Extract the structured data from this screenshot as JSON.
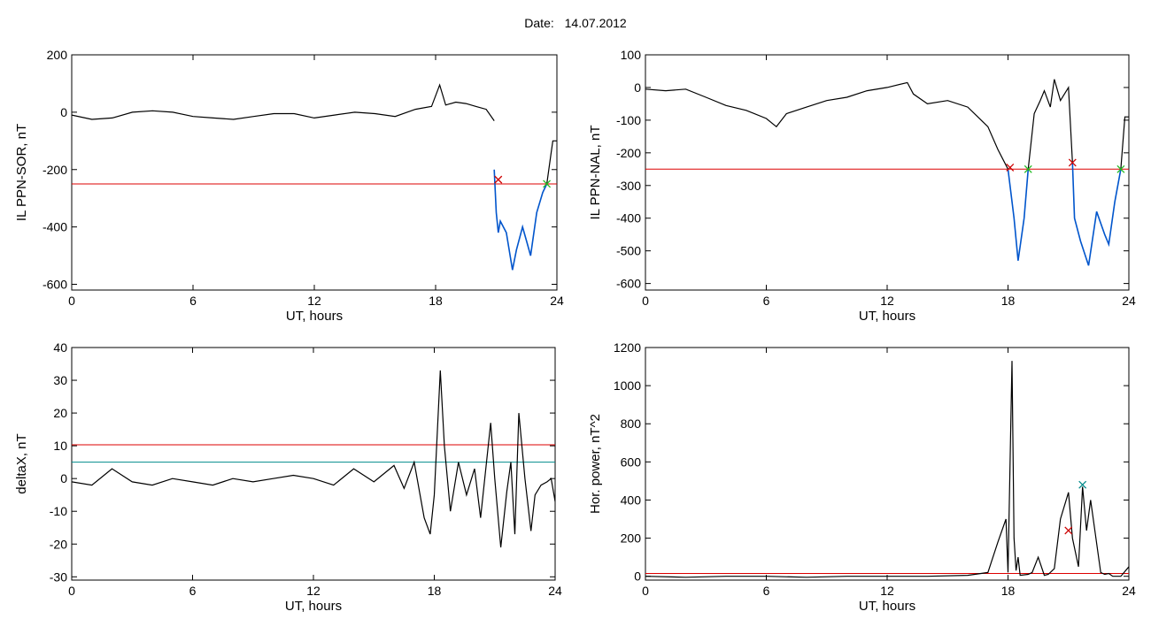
{
  "header": {
    "date_label": "Date:",
    "date_value": "14.07.2012"
  },
  "colors": {
    "data_line": "#000000",
    "event_line": "#0055cc",
    "threshold_red": "#dd0000",
    "threshold_teal": "#008b8b",
    "marker_red": "#cc0000",
    "marker_green": "#22bb22",
    "marker_teal": "#008b8b"
  },
  "chart_data": [
    {
      "id": "sor",
      "type": "line",
      "xlabel": "UT, hours",
      "ylabel": "IL PPN-SOR, nT",
      "xlim": [
        0,
        24
      ],
      "ylim": [
        -620,
        200
      ],
      "xticks": [
        0,
        6,
        12,
        18,
        24
      ],
      "yticks": [
        200,
        0,
        -200,
        -400,
        -600
      ],
      "hlines": [
        {
          "y": -250,
          "color": "red"
        }
      ],
      "series": [
        {
          "x": [
            0,
            1,
            2,
            3,
            4,
            5,
            6,
            7,
            8,
            9,
            10,
            11,
            12,
            13,
            14,
            15,
            16,
            17,
            17.8,
            18.2,
            18.5,
            19,
            19.5,
            20,
            20.5,
            20.9
          ],
          "y": [
            -10,
            -25,
            -20,
            0,
            5,
            0,
            -15,
            -20,
            -25,
            -15,
            -5,
            -5,
            -20,
            -10,
            0,
            -5,
            -15,
            10,
            20,
            95,
            25,
            35,
            30,
            20,
            10,
            -30
          ]
        }
      ],
      "event_series": [
        {
          "x": [
            20.9,
            21.0,
            21.1,
            21.2,
            21.5,
            21.8,
            22.0,
            22.3,
            22.5,
            22.7,
            23.0,
            23.3,
            23.5
          ],
          "y": [
            -200,
            -350,
            -420,
            -380,
            -420,
            -550,
            -480,
            -400,
            -450,
            -500,
            -350,
            -280,
            -250
          ]
        }
      ],
      "tail_series": [
        {
          "x": [
            23.5,
            23.7,
            23.8,
            24
          ],
          "y": [
            -250,
            -150,
            -100,
            -100
          ]
        }
      ],
      "markers": [
        {
          "x": 21.1,
          "y": -235,
          "color": "red"
        },
        {
          "x": 23.5,
          "y": -250,
          "color": "green"
        }
      ]
    },
    {
      "id": "nal",
      "type": "line",
      "xlabel": "UT, hours",
      "ylabel": "IL PPN-NAL, nT",
      "xlim": [
        0,
        24
      ],
      "ylim": [
        -620,
        100
      ],
      "xticks": [
        0,
        6,
        12,
        18,
        24
      ],
      "yticks": [
        100,
        0,
        -100,
        -200,
        -300,
        -400,
        -500,
        -600
      ],
      "hlines": [
        {
          "y": -250,
          "color": "red"
        }
      ],
      "series": [
        {
          "x": [
            0,
            1,
            2,
            3,
            4,
            5,
            6,
            6.5,
            7,
            8,
            9,
            10,
            11,
            12,
            13,
            13.3,
            14,
            15,
            16,
            17,
            17.5,
            18
          ],
          "y": [
            -5,
            -10,
            -5,
            -30,
            -55,
            -70,
            -95,
            -120,
            -80,
            -60,
            -40,
            -30,
            -10,
            0,
            15,
            -20,
            -50,
            -40,
            -60,
            -120,
            -190,
            -250
          ]
        }
      ],
      "event_series": [
        {
          "x": [
            18.0,
            18.3,
            18.5,
            18.8,
            19.0
          ],
          "y": [
            -250,
            -400,
            -530,
            -400,
            -250
          ]
        },
        {
          "x": [
            21.2,
            21.3,
            21.6,
            22.0,
            22.4,
            22.8,
            23.0,
            23.3,
            23.6
          ],
          "y": [
            -230,
            -400,
            -470,
            -545,
            -380,
            -450,
            -480,
            -350,
            -250
          ]
        }
      ],
      "tail_series": [
        {
          "x": [
            19.0,
            19.3,
            19.6,
            19.8,
            20.1,
            20.3,
            20.6,
            21.0,
            21.2
          ],
          "y": [
            -250,
            -80,
            -40,
            -10,
            -60,
            25,
            -40,
            0,
            -230
          ]
        },
        {
          "x": [
            23.6,
            23.8,
            24
          ],
          "y": [
            -250,
            -90,
            -90
          ]
        }
      ],
      "markers": [
        {
          "x": 18.1,
          "y": -245,
          "color": "red"
        },
        {
          "x": 19.0,
          "y": -250,
          "color": "green"
        },
        {
          "x": 21.2,
          "y": -230,
          "color": "red"
        },
        {
          "x": 23.6,
          "y": -250,
          "color": "green"
        }
      ]
    },
    {
      "id": "deltax",
      "type": "line",
      "xlabel": "UT, hours",
      "ylabel": "deltaX, nT",
      "xlim": [
        0,
        24
      ],
      "ylim": [
        -31,
        40
      ],
      "xticks": [
        0,
        6,
        12,
        18,
        24
      ],
      "yticks": [
        40,
        30,
        20,
        10,
        0,
        -10,
        -20,
        -30
      ],
      "hlines": [
        {
          "y": 10.3,
          "color": "red"
        },
        {
          "y": 5,
          "color": "teal"
        }
      ],
      "series": [
        {
          "x": [
            0,
            1,
            2,
            3,
            4,
            5,
            6,
            7,
            8,
            9,
            10,
            11,
            12,
            13,
            14,
            15,
            16,
            16.5,
            17,
            17.5,
            17.8,
            18,
            18.3,
            18.5,
            18.8,
            19.2,
            19.6,
            20.0,
            20.3,
            20.8,
            21.0,
            21.3,
            21.6,
            21.8,
            22.0,
            22.2,
            22.5,
            22.8,
            23.0,
            23.3,
            23.6,
            23.8,
            24
          ],
          "y": [
            -1,
            -2,
            3,
            -1,
            -2,
            0,
            -1,
            -2,
            0,
            -1,
            0,
            1,
            0,
            -2,
            3,
            -1,
            4,
            -3,
            5,
            -12,
            -17,
            -5,
            33,
            10,
            -10,
            5,
            -5,
            3,
            -12,
            17,
            0,
            -21,
            -4,
            5,
            -17,
            20,
            0,
            -16,
            -5,
            -2,
            -1,
            0,
            -7
          ]
        }
      ],
      "event_series": [],
      "tail_series": [],
      "markers": []
    },
    {
      "id": "power",
      "type": "line",
      "xlabel": "UT, hours",
      "ylabel": "Hor. power, nT^2",
      "xlim": [
        0,
        24
      ],
      "ylim": [
        -20,
        1200
      ],
      "xticks": [
        0,
        6,
        12,
        18,
        24
      ],
      "yticks": [
        1200,
        1000,
        800,
        600,
        400,
        200,
        0
      ],
      "hlines": [
        {
          "y": 15,
          "color": "red"
        }
      ],
      "series": [
        {
          "x": [
            0,
            2,
            4,
            6,
            8,
            10,
            12,
            14,
            16,
            17,
            17.5,
            17.9,
            18.0,
            18.2,
            18.3,
            18.4,
            18.5,
            18.6,
            19.0,
            19.2,
            19.5,
            19.8,
            20.0,
            20.3,
            20.6,
            21.0,
            21.2,
            21.5,
            21.7,
            21.9,
            22.1,
            22.3,
            22.6,
            22.8,
            23.0,
            23.2,
            23.6,
            24
          ],
          "y": [
            0,
            -5,
            0,
            0,
            -5,
            0,
            0,
            0,
            5,
            20,
            180,
            300,
            20,
            1130,
            200,
            30,
            100,
            5,
            10,
            20,
            100,
            5,
            10,
            40,
            300,
            440,
            200,
            50,
            470,
            240,
            400,
            250,
            20,
            10,
            15,
            0,
            0,
            50
          ]
        }
      ],
      "event_series": [],
      "tail_series": [],
      "markers": [
        {
          "x": 21.0,
          "y": 240,
          "color": "red"
        },
        {
          "x": 21.7,
          "y": 480,
          "color": "teal"
        }
      ]
    }
  ]
}
